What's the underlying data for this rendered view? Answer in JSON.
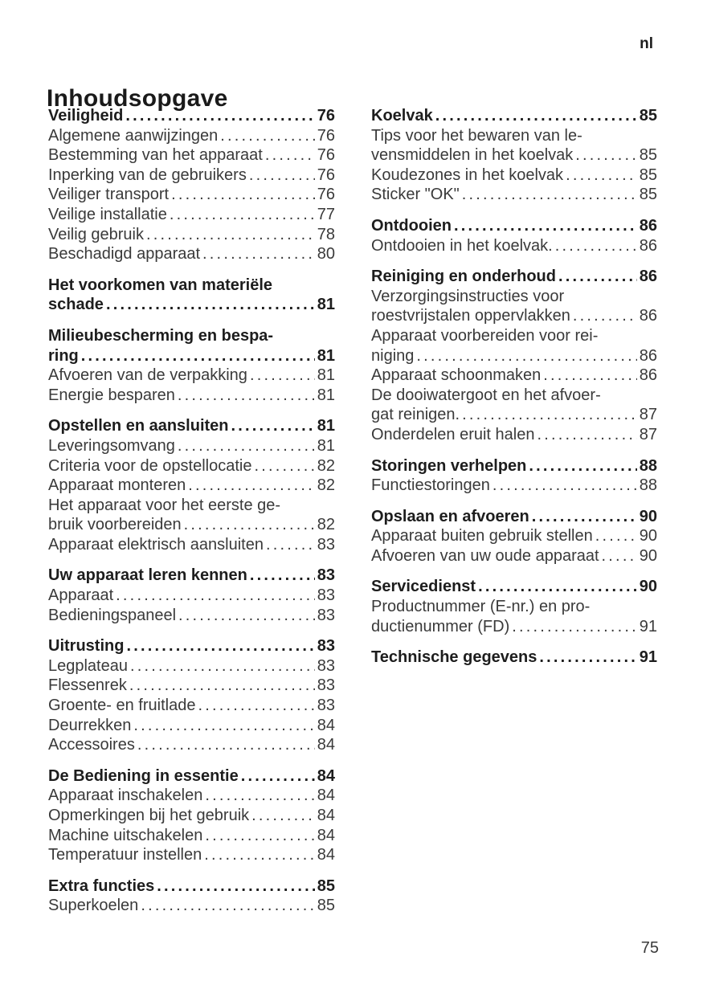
{
  "page": {
    "lang_marker": "nl",
    "title": "Inhoudsopgave",
    "page_number": "75"
  },
  "colors": {
    "background": "#ffffff",
    "text_regular": "#3a3a3a",
    "text_bold": "#1d1d1d"
  },
  "toc": {
    "columns": [
      {
        "groups": [
          {
            "entries": [
              {
                "lines": [
                  "Veiligheid"
                ],
                "page": "76",
                "bold": true
              },
              {
                "lines": [
                  "Algemene aanwijzingen"
                ],
                "page": "76",
                "bold": false
              },
              {
                "lines": [
                  "Bestemming van het apparaat"
                ],
                "page": "76",
                "bold": false
              },
              {
                "lines": [
                  "Inperking van de gebruikers"
                ],
                "page": "76",
                "bold": false
              },
              {
                "lines": [
                  "Veiliger transport"
                ],
                "page": "76",
                "bold": false
              },
              {
                "lines": [
                  "Veilige installatie"
                ],
                "page": "77",
                "bold": false
              },
              {
                "lines": [
                  "Veilig gebruik"
                ],
                "page": "78",
                "bold": false
              },
              {
                "lines": [
                  "Beschadigd apparaat"
                ],
                "page": "80",
                "bold": false
              }
            ]
          },
          {
            "entries": [
              {
                "lines": [
                  "Het voorkomen van materiële",
                  "schade"
                ],
                "page": "81",
                "bold": true
              }
            ]
          },
          {
            "entries": [
              {
                "lines": [
                  "Milieubescherming en bespa-",
                  "ring"
                ],
                "page": "81",
                "bold": true
              },
              {
                "lines": [
                  "Afvoeren van de verpakking"
                ],
                "page": "81",
                "bold": false
              },
              {
                "lines": [
                  "Energie besparen"
                ],
                "page": "81",
                "bold": false
              }
            ]
          },
          {
            "entries": [
              {
                "lines": [
                  "Opstellen en aansluiten"
                ],
                "page": "81",
                "bold": true
              },
              {
                "lines": [
                  "Leveringsomvang"
                ],
                "page": "81",
                "bold": false
              },
              {
                "lines": [
                  "Criteria voor de opstellocatie"
                ],
                "page": "82",
                "bold": false
              },
              {
                "lines": [
                  "Apparaat monteren"
                ],
                "page": "82",
                "bold": false
              },
              {
                "lines": [
                  "Het apparaat voor het eerste ge-",
                  "bruik voorbereiden"
                ],
                "page": "82",
                "bold": false
              },
              {
                "lines": [
                  "Apparaat elektrisch aansluiten"
                ],
                "page": "83",
                "bold": false
              }
            ]
          },
          {
            "entries": [
              {
                "lines": [
                  "Uw apparaat leren kennen"
                ],
                "page": "83",
                "bold": true
              },
              {
                "lines": [
                  "Apparaat"
                ],
                "page": "83",
                "bold": false
              },
              {
                "lines": [
                  "Bedieningspaneel"
                ],
                "page": "83",
                "bold": false
              }
            ]
          },
          {
            "entries": [
              {
                "lines": [
                  "Uitrusting"
                ],
                "page": "83",
                "bold": true
              },
              {
                "lines": [
                  "Legplateau"
                ],
                "page": "83",
                "bold": false
              },
              {
                "lines": [
                  "Flessenrek"
                ],
                "page": "83",
                "bold": false
              },
              {
                "lines": [
                  "Groente- en fruitlade"
                ],
                "page": "83",
                "bold": false
              },
              {
                "lines": [
                  "Deurrekken"
                ],
                "page": "84",
                "bold": false
              },
              {
                "lines": [
                  "Accessoires"
                ],
                "page": "84",
                "bold": false
              }
            ]
          },
          {
            "entries": [
              {
                "lines": [
                  "De Bediening in essentie"
                ],
                "page": "84",
                "bold": true
              },
              {
                "lines": [
                  "Apparaat inschakelen"
                ],
                "page": "84",
                "bold": false
              },
              {
                "lines": [
                  "Opmerkingen bij het gebruik"
                ],
                "page": "84",
                "bold": false
              },
              {
                "lines": [
                  "Machine uitschakelen"
                ],
                "page": "84",
                "bold": false
              },
              {
                "lines": [
                  "Temperatuur instellen"
                ],
                "page": "84",
                "bold": false
              }
            ]
          },
          {
            "entries": [
              {
                "lines": [
                  "Extra functies"
                ],
                "page": "85",
                "bold": true
              },
              {
                "lines": [
                  "Superkoelen"
                ],
                "page": "85",
                "bold": false
              }
            ]
          }
        ]
      },
      {
        "groups": [
          {
            "entries": [
              {
                "lines": [
                  "Koelvak"
                ],
                "page": "85",
                "bold": true
              },
              {
                "lines": [
                  "Tips voor het bewaren van le-",
                  "vensmiddelen in het koelvak"
                ],
                "page": "85",
                "bold": false
              },
              {
                "lines": [
                  "Koudezones in het koelvak"
                ],
                "page": "85",
                "bold": false
              },
              {
                "lines": [
                  "Sticker \"OK\""
                ],
                "page": "85",
                "bold": false
              }
            ]
          },
          {
            "entries": [
              {
                "lines": [
                  "Ontdooien"
                ],
                "page": "86",
                "bold": true
              },
              {
                "lines": [
                  "Ontdooien in het koelvak."
                ],
                "page": "86",
                "bold": false
              }
            ]
          },
          {
            "entries": [
              {
                "lines": [
                  "Reiniging en onderhoud"
                ],
                "page": "86",
                "bold": true
              },
              {
                "lines": [
                  "Verzorgingsinstructies voor",
                  "roestvrijstalen oppervlakken"
                ],
                "page": "86",
                "bold": false
              },
              {
                "lines": [
                  "Apparaat voorbereiden voor rei-",
                  "niging"
                ],
                "page": "86",
                "bold": false
              },
              {
                "lines": [
                  "Apparaat schoonmaken"
                ],
                "page": "86",
                "bold": false
              },
              {
                "lines": [
                  "De dooiwatergoot en het afvoer-",
                  "gat reinigen."
                ],
                "page": "87",
                "bold": false
              },
              {
                "lines": [
                  "Onderdelen eruit halen"
                ],
                "page": "87",
                "bold": false
              }
            ]
          },
          {
            "entries": [
              {
                "lines": [
                  "Storingen verhelpen"
                ],
                "page": "88",
                "bold": true
              },
              {
                "lines": [
                  "Functiestoringen"
                ],
                "page": "88",
                "bold": false
              }
            ]
          },
          {
            "entries": [
              {
                "lines": [
                  "Opslaan en afvoeren"
                ],
                "page": "90",
                "bold": true
              },
              {
                "lines": [
                  "Apparaat buiten gebruik stellen"
                ],
                "page": "90",
                "bold": false
              },
              {
                "lines": [
                  "Afvoeren van uw oude apparaat"
                ],
                "page": "90",
                "bold": false
              }
            ]
          },
          {
            "entries": [
              {
                "lines": [
                  "Servicedienst"
                ],
                "page": "90",
                "bold": true
              },
              {
                "lines": [
                  "Productnummer (E-nr.) en pro-",
                  "ductienummer (FD)"
                ],
                "page": "91",
                "bold": false
              }
            ]
          },
          {
            "entries": [
              {
                "lines": [
                  "Technische gegevens"
                ],
                "page": "91",
                "bold": true
              }
            ]
          }
        ]
      }
    ]
  }
}
